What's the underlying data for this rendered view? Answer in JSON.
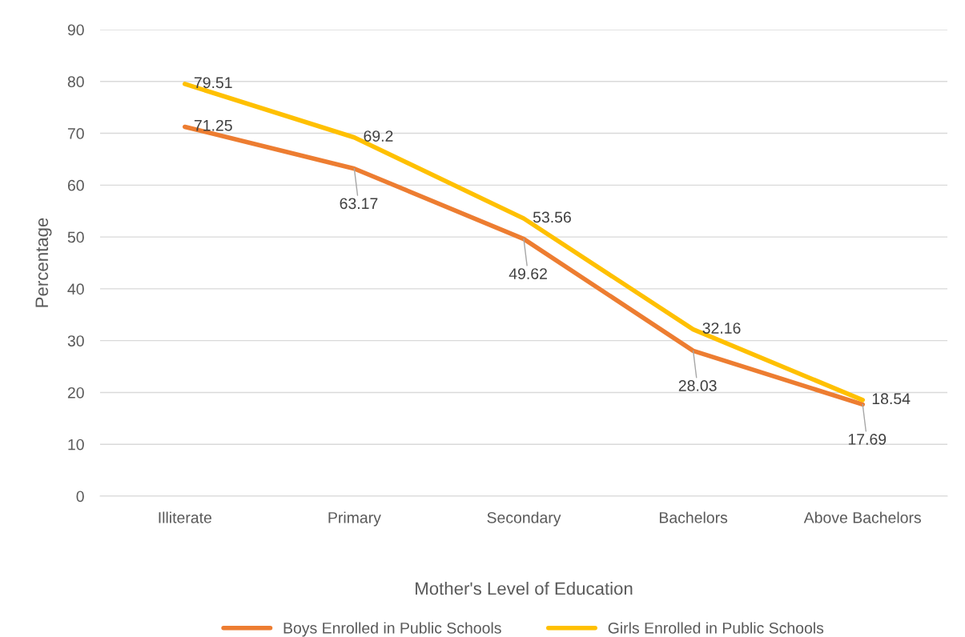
{
  "chart_data": {
    "type": "line",
    "xlabel": "Mother's Level of Education",
    "ylabel": "Percentage",
    "categories": [
      "Illiterate",
      "Primary",
      "Secondary",
      "Bachelors",
      "Above Bachelors"
    ],
    "series": [
      {
        "name": "Boys Enrolled in Public Schools",
        "color": "#ed7d31",
        "values": [
          71.25,
          63.17,
          49.62,
          28.03,
          17.69
        ]
      },
      {
        "name": "Girls Enrolled in Public Schools",
        "color": "#ffc000",
        "values": [
          79.51,
          69.2,
          53.56,
          32.16,
          18.54
        ]
      }
    ],
    "ylim": [
      0,
      90
    ],
    "yticks": [
      0,
      10,
      20,
      30,
      40,
      50,
      60,
      70,
      80,
      90
    ],
    "grid": "y",
    "legend": "bottom",
    "data_labels": true,
    "marker": "none",
    "line_style": "solid"
  }
}
